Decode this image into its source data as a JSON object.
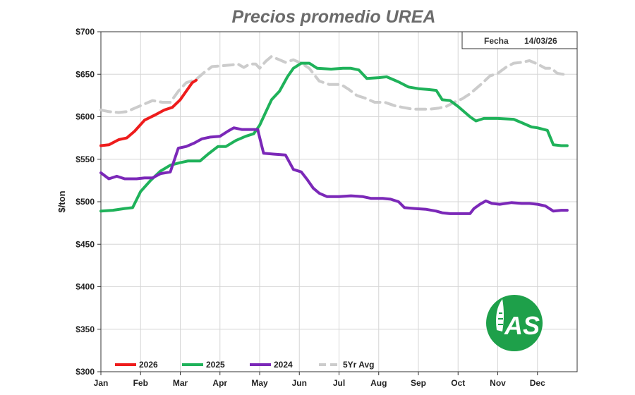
{
  "chart_data": {
    "type": "line",
    "title": "Precios promedio UREA",
    "ylabel": "$/ton",
    "xlabel": "",
    "categories": [
      "Jan",
      "Feb",
      "Mar",
      "Apr",
      "May",
      "Jun",
      "Jul",
      "Aug",
      "Sep",
      "Oct",
      "Nov",
      "Dec"
    ],
    "yticks": [
      "$300",
      "$350",
      "$400",
      "$450",
      "$500",
      "$550",
      "$600",
      "$650",
      "$700"
    ],
    "ylim": [
      300,
      700
    ],
    "xlim": [
      0,
      12
    ],
    "grid": true,
    "fecha": {
      "label": "Fecha",
      "value": "14/03/26"
    },
    "legend_position": "bottom",
    "series": [
      {
        "name": "2026",
        "color": "#ee1c1c",
        "dash": false,
        "points": [
          [
            0,
            566
          ],
          [
            0.2,
            567
          ],
          [
            0.45,
            573
          ],
          [
            0.65,
            575
          ],
          [
            0.85,
            583
          ],
          [
            1.1,
            596
          ],
          [
            1.4,
            603
          ],
          [
            1.6,
            608
          ],
          [
            1.8,
            611
          ],
          [
            2.0,
            620
          ],
          [
            2.15,
            630
          ],
          [
            2.3,
            640
          ],
          [
            2.4,
            643
          ]
        ]
      },
      {
        "name": "2025",
        "color": "#1fb25a",
        "dash": false,
        "points": [
          [
            0,
            489
          ],
          [
            0.3,
            490
          ],
          [
            0.6,
            492
          ],
          [
            0.8,
            493
          ],
          [
            1.0,
            512
          ],
          [
            1.25,
            525
          ],
          [
            1.5,
            536
          ],
          [
            1.75,
            543
          ],
          [
            2.0,
            546
          ],
          [
            2.2,
            548
          ],
          [
            2.5,
            548
          ],
          [
            2.7,
            556
          ],
          [
            2.95,
            565
          ],
          [
            3.15,
            565
          ],
          [
            3.4,
            572
          ],
          [
            3.65,
            577
          ],
          [
            3.85,
            580
          ],
          [
            4.0,
            590
          ],
          [
            4.15,
            605
          ],
          [
            4.3,
            620
          ],
          [
            4.5,
            630
          ],
          [
            4.7,
            647
          ],
          [
            4.85,
            657
          ],
          [
            5.05,
            663
          ],
          [
            5.25,
            663
          ],
          [
            5.45,
            657
          ],
          [
            5.8,
            656
          ],
          [
            6.1,
            657
          ],
          [
            6.3,
            657
          ],
          [
            6.5,
            655
          ],
          [
            6.7,
            645
          ],
          [
            7.0,
            646
          ],
          [
            7.2,
            647
          ],
          [
            7.5,
            641
          ],
          [
            7.75,
            635
          ],
          [
            8.0,
            633
          ],
          [
            8.25,
            632
          ],
          [
            8.45,
            631
          ],
          [
            8.6,
            620
          ],
          [
            8.8,
            619
          ],
          [
            9.0,
            612
          ],
          [
            9.3,
            600
          ],
          [
            9.45,
            595
          ],
          [
            9.65,
            598
          ],
          [
            10.0,
            598
          ],
          [
            10.4,
            597
          ],
          [
            10.6,
            593
          ],
          [
            10.85,
            588
          ],
          [
            11.0,
            587
          ],
          [
            11.25,
            584
          ],
          [
            11.4,
            567
          ],
          [
            11.6,
            566
          ],
          [
            11.75,
            566
          ]
        ]
      },
      {
        "name": "2024",
        "color": "#7b28b8",
        "dash": false,
        "points": [
          [
            0,
            534
          ],
          [
            0.2,
            527
          ],
          [
            0.4,
            530
          ],
          [
            0.6,
            527
          ],
          [
            0.9,
            527
          ],
          [
            1.1,
            528
          ],
          [
            1.3,
            528
          ],
          [
            1.5,
            533
          ],
          [
            1.75,
            535
          ],
          [
            1.95,
            563
          ],
          [
            2.15,
            565
          ],
          [
            2.35,
            569
          ],
          [
            2.55,
            574
          ],
          [
            2.75,
            576
          ],
          [
            3.0,
            577
          ],
          [
            3.2,
            583
          ],
          [
            3.35,
            587
          ],
          [
            3.55,
            585
          ],
          [
            3.85,
            585
          ],
          [
            3.95,
            585
          ],
          [
            4.1,
            557
          ],
          [
            4.35,
            556
          ],
          [
            4.65,
            555
          ],
          [
            4.85,
            538
          ],
          [
            5.05,
            535
          ],
          [
            5.2,
            526
          ],
          [
            5.35,
            516
          ],
          [
            5.5,
            510
          ],
          [
            5.7,
            506
          ],
          [
            6.0,
            506
          ],
          [
            6.3,
            507
          ],
          [
            6.6,
            506
          ],
          [
            6.8,
            504
          ],
          [
            7.1,
            504
          ],
          [
            7.3,
            503
          ],
          [
            7.5,
            500
          ],
          [
            7.65,
            493
          ],
          [
            7.9,
            492
          ],
          [
            8.2,
            491
          ],
          [
            8.45,
            489
          ],
          [
            8.6,
            487
          ],
          [
            8.8,
            486
          ],
          [
            9.0,
            486
          ],
          [
            9.3,
            486
          ],
          [
            9.4,
            492
          ],
          [
            9.55,
            497
          ],
          [
            9.7,
            501
          ],
          [
            9.85,
            498
          ],
          [
            10.05,
            497
          ],
          [
            10.35,
            499
          ],
          [
            10.6,
            498
          ],
          [
            10.8,
            498
          ],
          [
            11.0,
            497
          ],
          [
            11.2,
            495
          ],
          [
            11.4,
            489
          ],
          [
            11.6,
            490
          ],
          [
            11.75,
            490
          ]
        ]
      },
      {
        "name": "5Yr Avg",
        "color": "#cccccc",
        "dash": true,
        "points": [
          [
            0,
            608
          ],
          [
            0.2,
            606
          ],
          [
            0.45,
            605
          ],
          [
            0.65,
            606
          ],
          [
            0.85,
            610
          ],
          [
            1.05,
            614
          ],
          [
            1.3,
            619
          ],
          [
            1.55,
            617
          ],
          [
            1.75,
            617
          ],
          [
            1.95,
            630
          ],
          [
            2.15,
            640
          ],
          [
            2.4,
            644
          ],
          [
            2.6,
            652
          ],
          [
            2.8,
            659
          ],
          [
            3.05,
            660
          ],
          [
            3.3,
            661
          ],
          [
            3.45,
            662
          ],
          [
            3.6,
            658
          ],
          [
            3.75,
            662
          ],
          [
            3.9,
            662
          ],
          [
            4.0,
            657
          ],
          [
            4.15,
            665
          ],
          [
            4.3,
            671
          ],
          [
            4.45,
            668
          ],
          [
            4.65,
            664
          ],
          [
            4.85,
            667
          ],
          [
            5.05,
            663
          ],
          [
            5.25,
            657
          ],
          [
            5.5,
            642
          ],
          [
            5.75,
            638
          ],
          [
            6.05,
            638
          ],
          [
            6.25,
            632
          ],
          [
            6.45,
            625
          ],
          [
            6.65,
            622
          ],
          [
            6.9,
            617
          ],
          [
            7.15,
            617
          ],
          [
            7.4,
            613
          ],
          [
            7.6,
            611
          ],
          [
            7.85,
            609
          ],
          [
            8.05,
            609
          ],
          [
            8.3,
            609
          ],
          [
            8.5,
            610
          ],
          [
            8.7,
            612
          ],
          [
            8.9,
            617
          ],
          [
            9.1,
            621
          ],
          [
            9.3,
            627
          ],
          [
            9.45,
            633
          ],
          [
            9.6,
            639
          ],
          [
            9.8,
            648
          ],
          [
            10.0,
            651
          ],
          [
            10.2,
            658
          ],
          [
            10.4,
            663
          ],
          [
            10.6,
            664
          ],
          [
            10.8,
            666
          ],
          [
            11.0,
            662
          ],
          [
            11.2,
            657
          ],
          [
            11.35,
            657
          ],
          [
            11.5,
            651
          ],
          [
            11.65,
            650
          ],
          [
            11.75,
            650
          ]
        ]
      }
    ]
  },
  "logo": {
    "text": "AS",
    "color": "#1ea04a"
  }
}
